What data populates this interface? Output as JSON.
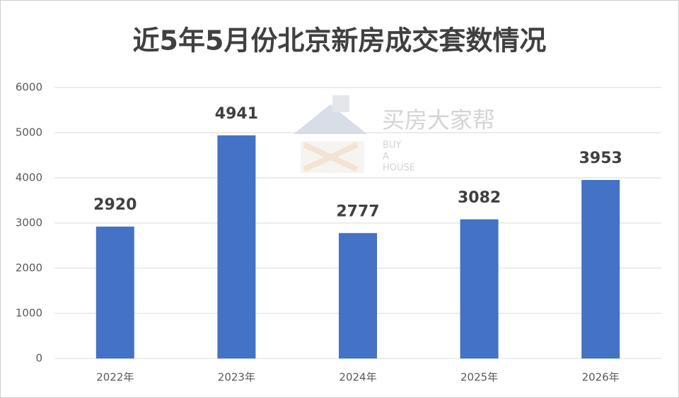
{
  "chart_data": {
    "type": "bar",
    "title": "近5年5月份北京新房成交套数情况",
    "categories": [
      "2022年",
      "2023年",
      "2024年",
      "2025年",
      "2026年"
    ],
    "values": [
      2920,
      4941,
      2777,
      3082,
      3953
    ],
    "color": "#4472c4",
    "ylim": [
      0,
      6000
    ],
    "yticks": [
      0,
      1000,
      2000,
      3000,
      4000,
      5000,
      6000
    ],
    "grid": true,
    "watermark": {
      "text": "买房大家帮",
      "lines": [
        "BUY",
        "A",
        "HOUSE"
      ]
    }
  }
}
